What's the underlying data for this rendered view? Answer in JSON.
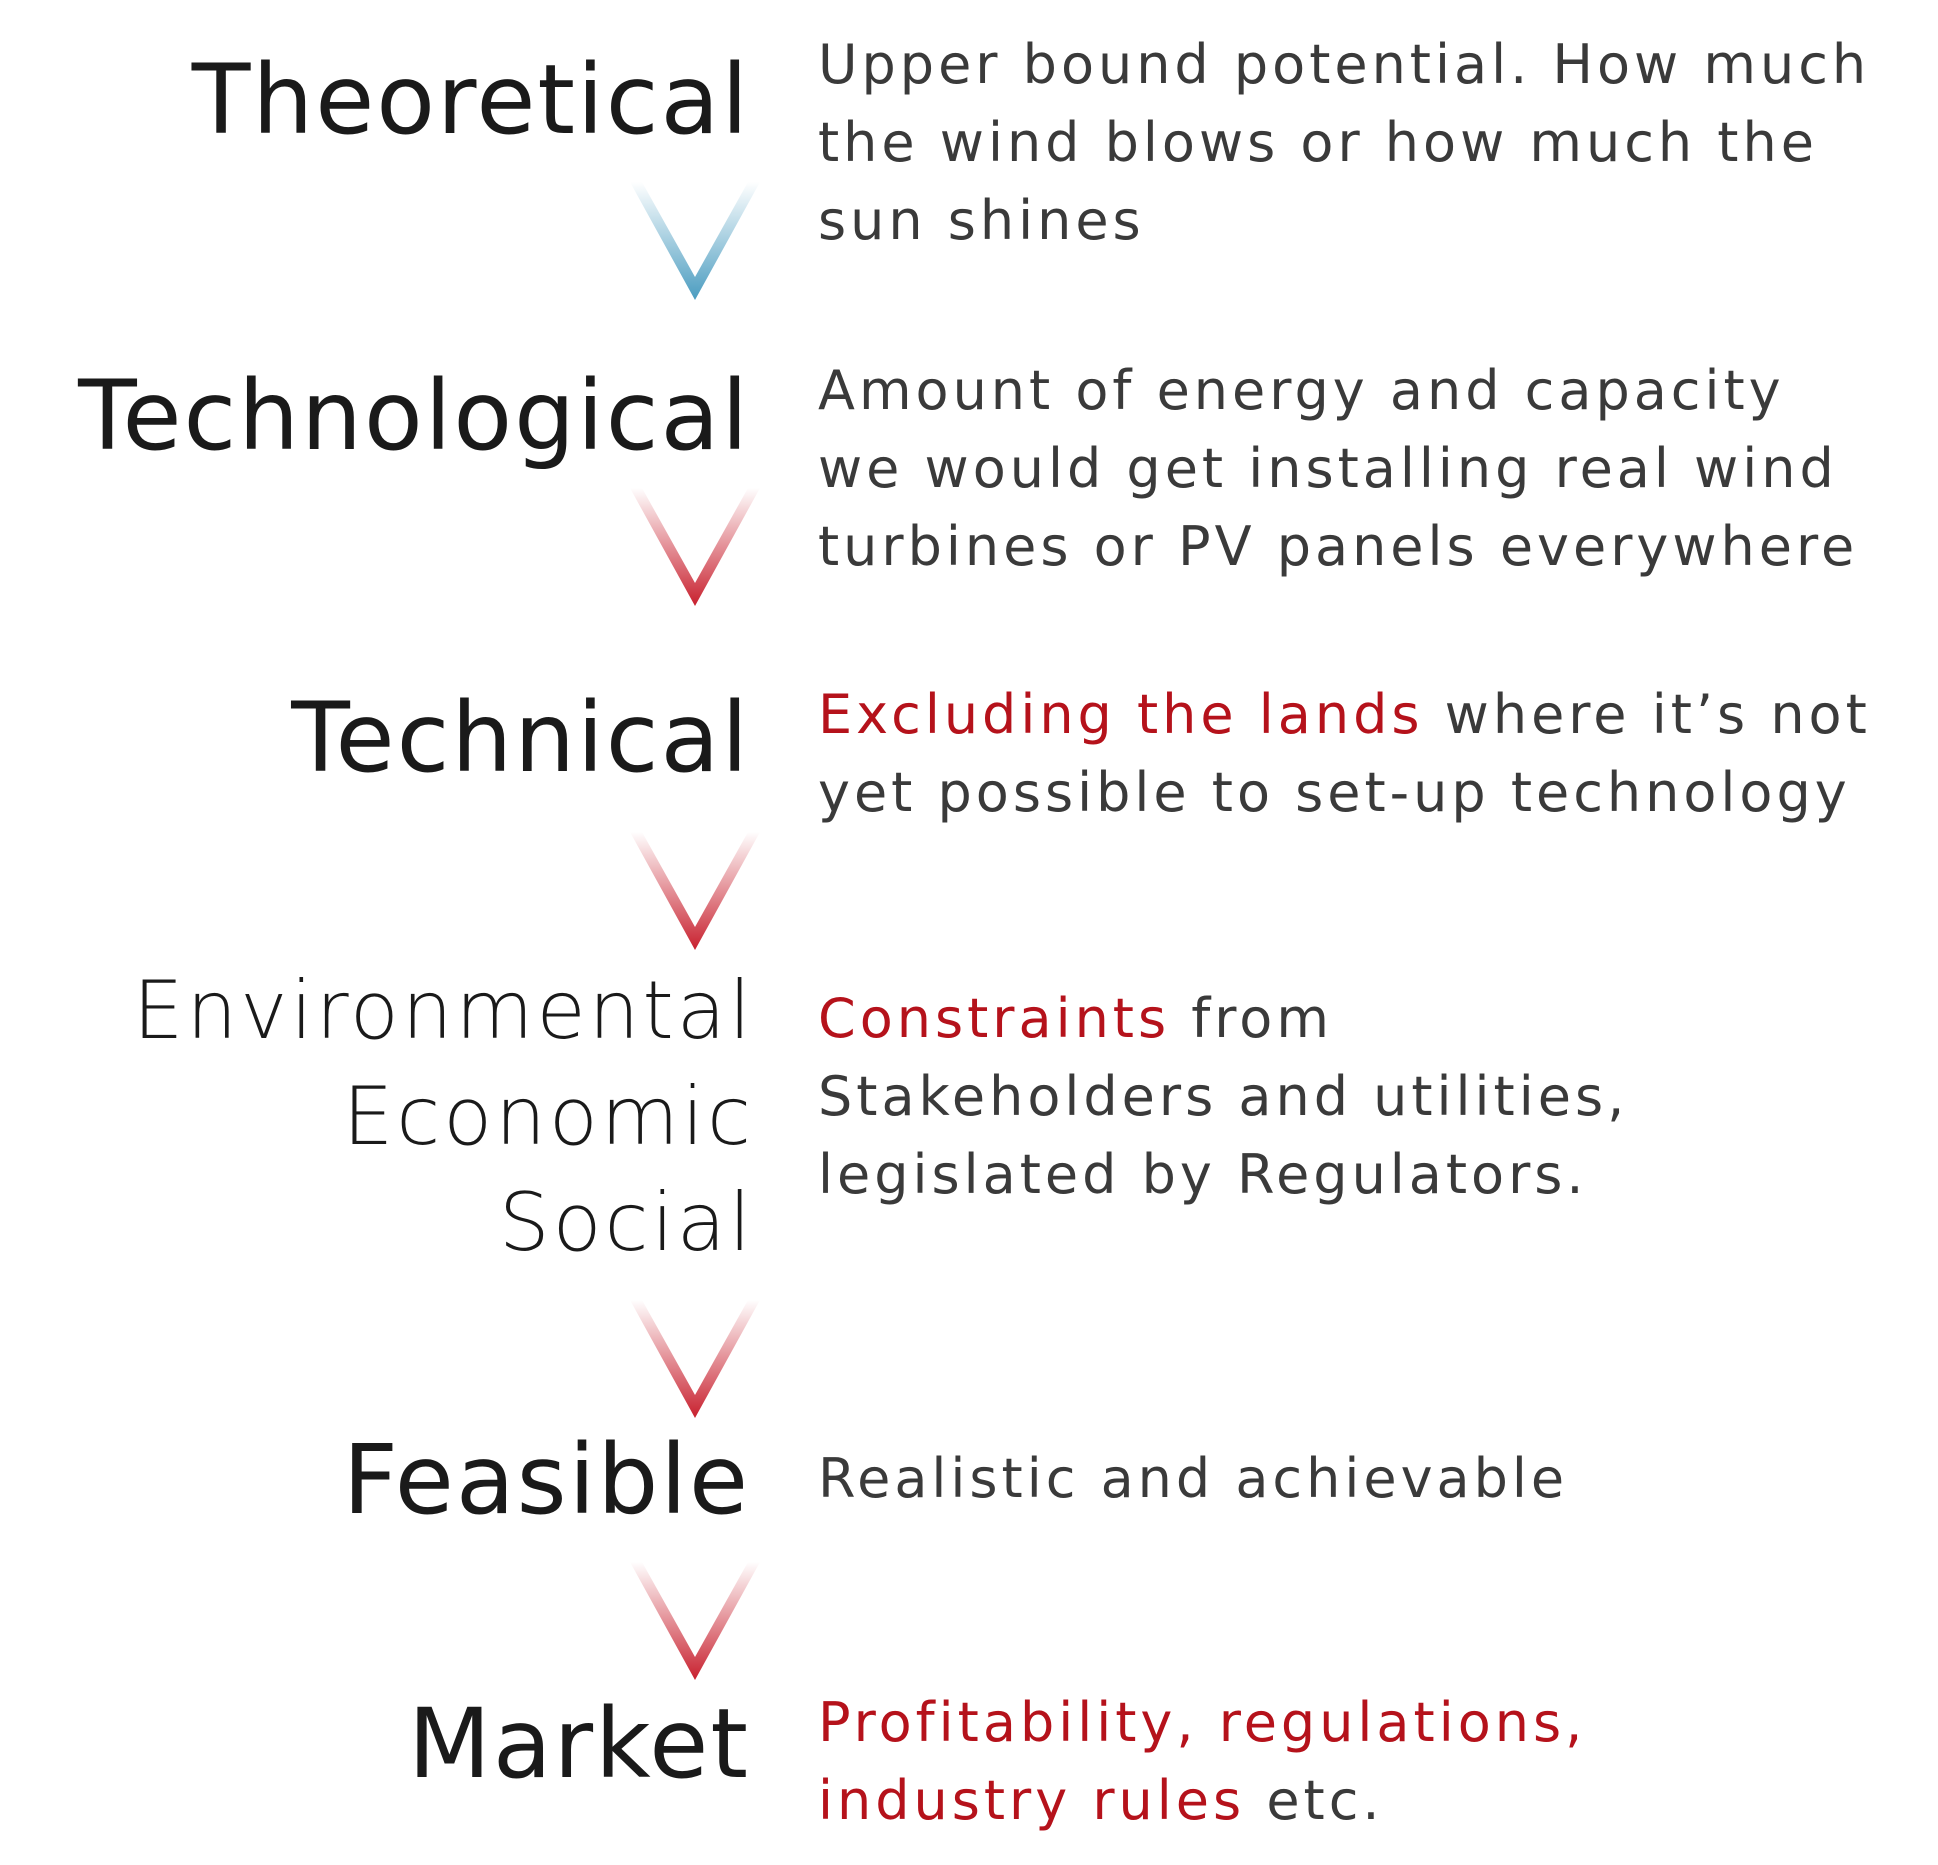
{
  "stages": [
    {
      "label": "Theoretical",
      "desc_lines": [
        "Upper bound potential. How much",
        "the wind blows or how much the",
        "sun shines"
      ]
    },
    {
      "label": "Technological",
      "desc_lines": [
        "Amount of energy and capacity",
        "we would get installing real wind",
        "turbines or PV panels everywhere"
      ]
    },
    {
      "label": "Technical",
      "desc_highlight": "Excluding the lands",
      "desc_rest": " where it’s not",
      "desc_line2": "yet possible to set-up technology"
    },
    {
      "label_lines": [
        "Environmental",
        "Economic",
        "Social"
      ],
      "desc_highlight": "Constraints",
      "desc_rest": " from",
      "desc_lines": [
        "Stakeholders and utilities,",
        "legislated by Regulators."
      ]
    },
    {
      "label": "Feasible",
      "desc": "Realistic and achievable"
    },
    {
      "label": "Market",
      "desc_highlight_1": "Profitability, regulations,",
      "desc_highlight_2": "industry rules",
      "desc_rest": " etc."
    }
  ],
  "colors": {
    "label": "#1a1a1a",
    "desc": "#3a3a3a",
    "highlight": "#b5121b",
    "arrow_first": "#4a9cc0",
    "arrow_rest": "#c8202e"
  },
  "arrows": [
    {
      "name": "arrow-blue",
      "color": "blue"
    },
    {
      "name": "arrow-red",
      "color": "red"
    },
    {
      "name": "arrow-red",
      "color": "red"
    },
    {
      "name": "arrow-red",
      "color": "red"
    },
    {
      "name": "arrow-red",
      "color": "red"
    }
  ]
}
